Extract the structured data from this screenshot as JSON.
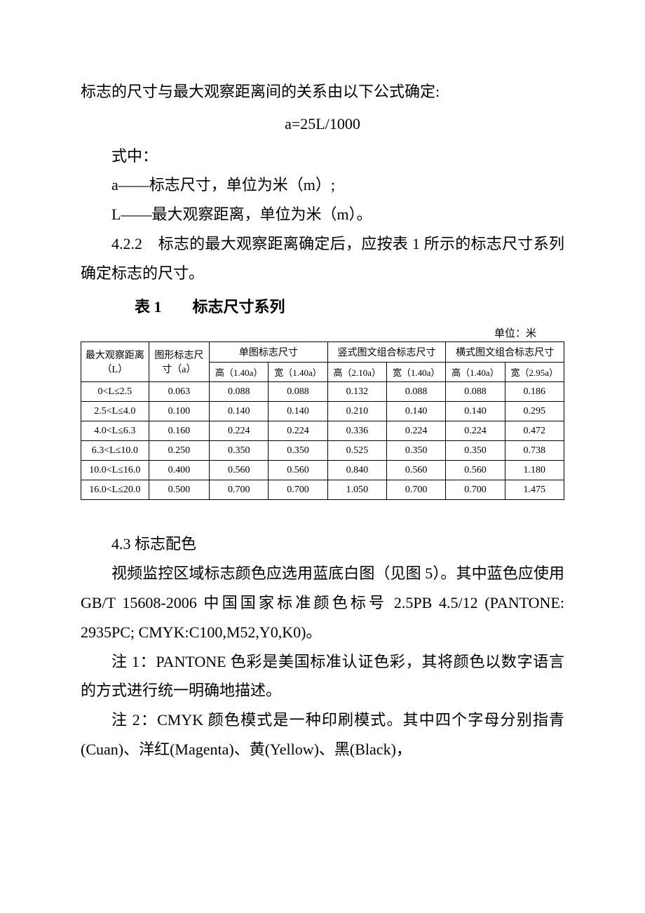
{
  "intro": "标志的尺寸与最大观察距离间的关系由以下公式确定:",
  "formula": "a=25L/1000",
  "formula_label": "式中：",
  "definition_a": "a——标志尺寸，单位为米（m）;",
  "definition_L": "L——最大观察距离，单位为米（m）。",
  "section_422": "4.2.2　标志的最大观察距离确定后，应按表 1 所示的标志尺寸系列确定标志的尺寸。",
  "table_caption": "表 1　　标志尺寸系列",
  "unit_text": "单位：米",
  "table": {
    "headers": {
      "distance": "最大观察距离（L）",
      "graphic": "图形标志尺寸（a）",
      "single": "单图标志尺寸",
      "vertical": "竖式图文组合标志尺寸",
      "horizontal": "横式图文组合标志尺寸",
      "single_h": "高（1.40a）",
      "single_w": "宽（1.40a）",
      "vertical_h": "高（2.10a）",
      "vertical_w": "宽（1.40a）",
      "horizontal_h": "高（1.40a）",
      "horizontal_w": "宽（2.95a）"
    },
    "rows": [
      {
        "dist": "0<L≤2.5",
        "a": "0.063",
        "sh": "0.088",
        "sw": "0.088",
        "vh": "0.132",
        "vw": "0.088",
        "hh": "0.088",
        "hw": "0.186"
      },
      {
        "dist": "2.5<L≤4.0",
        "a": "0.100",
        "sh": "0.140",
        "sw": "0.140",
        "vh": "0.210",
        "vw": "0.140",
        "hh": "0.140",
        "hw": "0.295"
      },
      {
        "dist": "4.0<L≤6.3",
        "a": "0.160",
        "sh": "0.224",
        "sw": "0.224",
        "vh": "0.336",
        "vw": "0.224",
        "hh": "0.224",
        "hw": "0.472"
      },
      {
        "dist": "6.3<L≤10.0",
        "a": "0.250",
        "sh": "0.350",
        "sw": "0.350",
        "vh": "0.525",
        "vw": "0.350",
        "hh": "0.350",
        "hw": "0.738"
      },
      {
        "dist": "10.0<L≤16.0",
        "a": "0.400",
        "sh": "0.560",
        "sw": "0.560",
        "vh": "0.840",
        "vw": "0.560",
        "hh": "0.560",
        "hw": "1.180"
      },
      {
        "dist": "16.0<L≤20.0",
        "a": "0.500",
        "sh": "0.700",
        "sw": "0.700",
        "vh": "1.050",
        "vw": "0.700",
        "hh": "0.700",
        "hw": "1.475"
      }
    ]
  },
  "section_43_title": "4.3  标志配色",
  "section_43_p1": "视频监控区域标志颜色应选用蓝底白图（见图 5）。其中蓝色应使用 GB/T 15608-2006 中国国家标准颜色标号 2.5PB 4.5/12 (PANTONE: 2935PC; CMYK:C100,M52,Y0,K0)。",
  "note1": "注 1：PANTONE 色彩是美国标准认证色彩，其将颜色以数字语言的方式进行统一明确地描述。",
  "note2": "注 2：CMYK 颜色模式是一种印刷模式。其中四个字母分别指青(Cuan)、洋红(Magenta)、黄(Yellow)、黑(Black)，"
}
